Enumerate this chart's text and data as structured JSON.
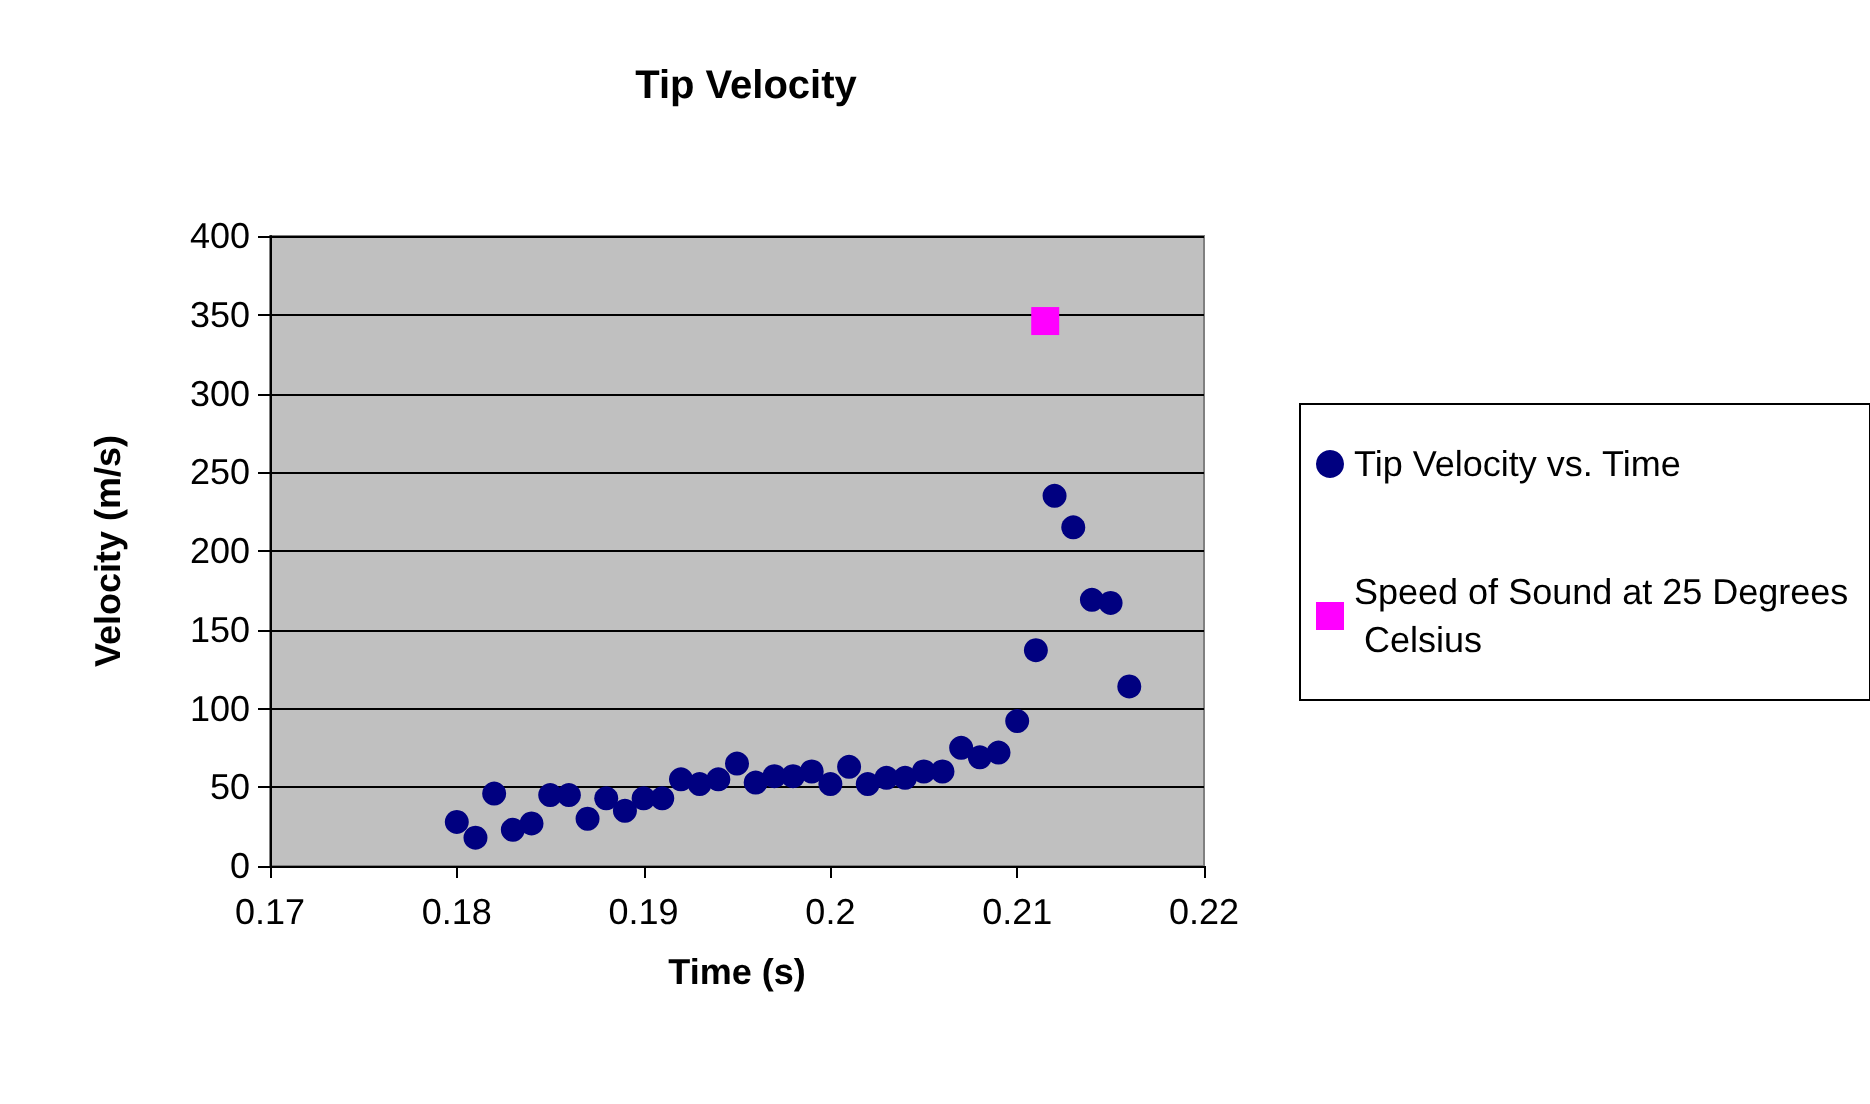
{
  "chart_data": {
    "type": "scatter",
    "title": "Tip Velocity",
    "xlabel": "Time (s)",
    "ylabel": "Velocity (m/s)",
    "xlim": [
      0.17,
      0.22
    ],
    "xticks": [
      0.17,
      0.18,
      0.19,
      0.2,
      0.21,
      0.22
    ],
    "ylim": [
      0,
      400
    ],
    "yticks": [
      0,
      50,
      100,
      150,
      200,
      250,
      300,
      350,
      400
    ],
    "grid": "y",
    "legend": "right",
    "series": [
      {
        "name": "Tip Velocity vs. Time",
        "color": "#000080",
        "marker": "circle",
        "x": [
          0.18,
          0.181,
          0.182,
          0.183,
          0.184,
          0.185,
          0.186,
          0.187,
          0.188,
          0.189,
          0.19,
          0.191,
          0.192,
          0.193,
          0.194,
          0.195,
          0.196,
          0.197,
          0.198,
          0.199,
          0.2,
          0.201,
          0.202,
          0.203,
          0.204,
          0.205,
          0.206,
          0.207,
          0.208,
          0.209,
          0.21,
          0.211,
          0.212,
          0.213,
          0.214,
          0.215,
          0.216
        ],
        "values": [
          28,
          18,
          46,
          23,
          27,
          45,
          45,
          30,
          43,
          35,
          43,
          43,
          55,
          52,
          55,
          65,
          53,
          57,
          57,
          60,
          52,
          63,
          52,
          56,
          56,
          60,
          60,
          75,
          69,
          72,
          92,
          137,
          235,
          215,
          169,
          167,
          114
        ]
      },
      {
        "name": "Speed of Sound at 25 Degrees Celsius",
        "color": "#ff00ff",
        "marker": "square",
        "x": [
          0.2115
        ],
        "values": [
          346
        ]
      }
    ]
  }
}
